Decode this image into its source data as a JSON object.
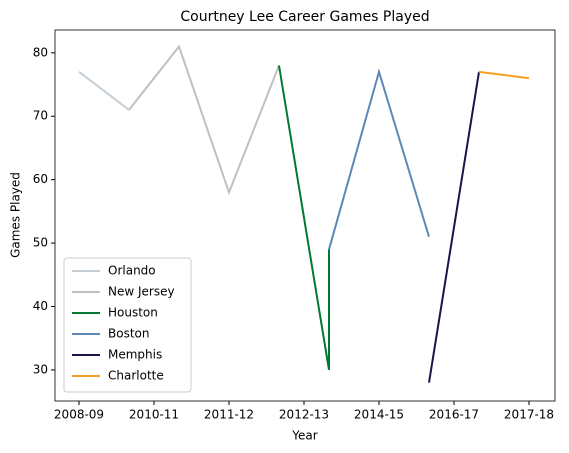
{
  "chart_data": {
    "type": "line",
    "title": "Courtney Lee Career Games Played",
    "x_label": "Year",
    "y_label": "Games Played",
    "series": [
      {
        "name": "Orlando",
        "color": "#c4ced4",
        "x": [
          0,
          1
        ],
        "values": [
          77,
          71
        ]
      },
      {
        "name": "New Jersey",
        "color": "#c0c0c0",
        "x": [
          1,
          2,
          3,
          4
        ],
        "values": [
          71,
          81,
          58,
          78
        ]
      },
      {
        "name": "Houston",
        "color": "#007a33",
        "x": [
          4,
          5,
          5
        ],
        "values": [
          78,
          30,
          49
        ]
      },
      {
        "name": "Boston",
        "color": "#5d88b6",
        "x": [
          5,
          6,
          7
        ],
        "values": [
          49,
          77,
          51
        ]
      },
      {
        "name": "Memphis",
        "color": "#1d1348",
        "x": [
          7,
          8
        ],
        "values": [
          28,
          77
        ]
      },
      {
        "name": "Charlotte",
        "color": "#f6a020",
        "x": [
          8,
          9
        ],
        "values": [
          77,
          76
        ]
      }
    ],
    "xlim": [
      -0.48,
      9.52
    ],
    "xticks": [
      {
        "value": 0,
        "label": "2008-09"
      },
      {
        "value": 1.5,
        "label": "2010-11"
      },
      {
        "value": 3,
        "label": "2011-12"
      },
      {
        "value": 4.5,
        "label": "2012-13"
      },
      {
        "value": 6,
        "label": "2014-15"
      },
      {
        "value": 7.5,
        "label": "2016-17"
      },
      {
        "value": 9,
        "label": "2017-18"
      }
    ],
    "ylim": [
      25.1,
      83.6
    ],
    "yticks": [
      30,
      40,
      50,
      60,
      70,
      80
    ],
    "legend": "lower left"
  }
}
